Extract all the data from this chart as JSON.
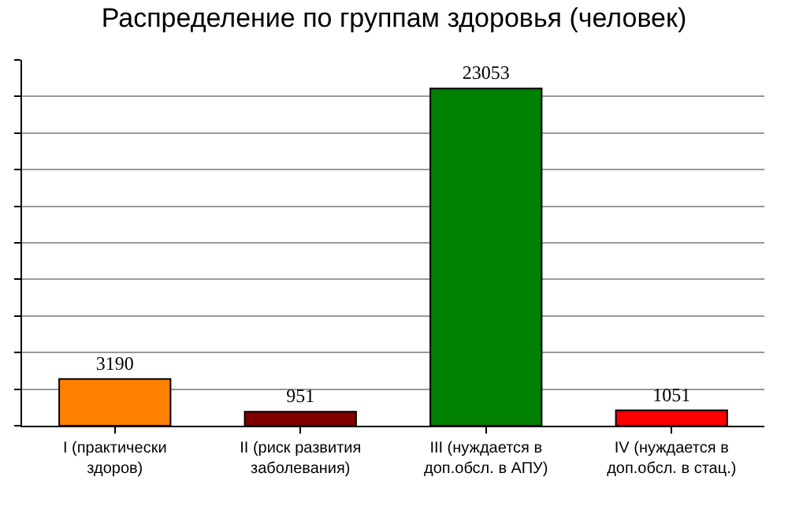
{
  "chart_data": {
    "type": "bar",
    "title": "Распределение по группам здоровья (человек)",
    "categories": [
      "I (практически здоров)",
      "II (риск развития заболевания)",
      "III (нуждается в доп.обсл. в АПУ)",
      "IV (нуждается в доп.обсл. в стац.)"
    ],
    "values": [
      3190,
      951,
      23053,
      1051
    ],
    "colors": [
      "#ff8000",
      "#800000",
      "#008000",
      "#ff0000"
    ],
    "data_labels": true,
    "grid": "y",
    "legend": false,
    "tick_labels": "x",
    "ylim": [
      0,
      25000
    ],
    "yticks": [
      {
        "value": 0,
        "label": null
      },
      {
        "value": 2500,
        "label": null
      },
      {
        "value": 5000,
        "label": null
      },
      {
        "value": 7500,
        "label": null
      },
      {
        "value": 10000,
        "label": null
      },
      {
        "value": 12500,
        "label": null
      },
      {
        "value": 15000,
        "label": null
      },
      {
        "value": 17500,
        "label": null
      },
      {
        "value": 20000,
        "label": null
      },
      {
        "value": 22500,
        "label": null
      },
      {
        "value": 25000,
        "label": null
      }
    ]
  }
}
